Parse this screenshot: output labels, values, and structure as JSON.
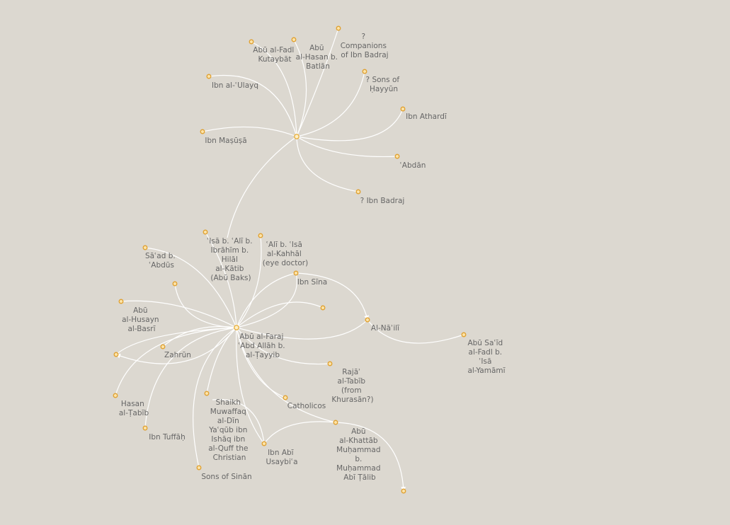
{
  "colors": {
    "background": "#dcd8d0",
    "link": "#ffffff",
    "node_fill": "#fbe3a8",
    "node_stroke": "#e0a030",
    "label": "#666666"
  },
  "nodes": [
    {
      "id": "n_companions",
      "label": [
        "?",
        "Companions",
        "of Ibn Badraj"
      ]
    },
    {
      "id": "n_abualfadl",
      "label": [
        "Abū al-Fadl",
        "Kutaybāt"
      ]
    },
    {
      "id": "n_ibnbatlan",
      "label": [
        "Abū",
        "al-Hasan b.",
        "Batlān"
      ]
    },
    {
      "id": "n_sonshayyun",
      "label": [
        "? Sons of",
        "Ḥayyūn"
      ]
    },
    {
      "id": "n_ulayq",
      "label": [
        "Ibn al-ʿUlayq"
      ]
    },
    {
      "id": "n_athardi",
      "label": [
        "Ibn Athardī"
      ]
    },
    {
      "id": "n_masusa",
      "label": [
        "Ibn Maṣūṣā"
      ]
    },
    {
      "id": "n_abdan",
      "label": [
        "ʿAbdān"
      ]
    },
    {
      "id": "n_ibnbadraj",
      "label": [
        "? Ibn Badraj"
      ]
    },
    {
      "id": "n_isa",
      "label": [
        "ʿIsā b. ʿAlī b.",
        "Ibrāhīm b.",
        "Hilāl",
        "al-Kātib",
        "(Abū Baks)"
      ]
    },
    {
      "id": "n_ali",
      "label": [
        "ʿAlī b. ʿIsā",
        "al-Kahhāl",
        "(eye doctor)"
      ]
    },
    {
      "id": "n_saad",
      "label": [
        "Sāʿad b.",
        "ʿAbdūs"
      ]
    },
    {
      "id": "n_ibnsina",
      "label": [
        "Ibn Sīna"
      ]
    },
    {
      "id": "n_abuhusayn",
      "label": [
        "Abū",
        "al-Husayn",
        "al-Basrī"
      ]
    },
    {
      "id": "n_naili",
      "label": [
        "Al-Nāʾilī"
      ]
    },
    {
      "id": "n_abufaraj",
      "label": [
        "Abū al-Faraj",
        "ʿAbd Allāh b.",
        "al-Ṭayyib"
      ]
    },
    {
      "id": "n_yamami",
      "label": [
        "Abū Saʿīd",
        "al-Fadl b.",
        "ʿIsā",
        "al-Yamāmī"
      ]
    },
    {
      "id": "n_zahrun",
      "label": [
        "Zahrūn"
      ]
    },
    {
      "id": "n_raja",
      "label": [
        "Rajāʾ",
        "al-Tabīb",
        "(from",
        "Khurasān?)"
      ]
    },
    {
      "id": "n_hasan",
      "label": [
        "Hasan",
        "al-Ṭabīb"
      ]
    },
    {
      "id": "n_catholicos",
      "label": [
        "Catholicos"
      ]
    },
    {
      "id": "n_tuffah",
      "label": [
        "Ibn Tuffāḥ"
      ]
    },
    {
      "id": "n_muwaffaq",
      "label": [
        "Shaikh",
        "Muwaffaq",
        "al-Dīn",
        "Yaʿqūb ibn",
        "Ishāq ibn",
        "al-Quff the",
        "Christian"
      ]
    },
    {
      "id": "n_usaybia",
      "label": [
        "Ibn Abī",
        "Usaybiʿa"
      ]
    },
    {
      "id": "n_khattab",
      "label": [
        "Abū",
        "al-Khattāb",
        "Muḥammad",
        "b.",
        "Muḥammad",
        "Abī Ṭālib"
      ]
    },
    {
      "id": "n_sinan",
      "label": [
        "Sons of Sinān"
      ]
    },
    {
      "id": "n_u1"
    },
    {
      "id": "n_u2"
    },
    {
      "id": "n_u3"
    },
    {
      "id": "n_u4"
    },
    {
      "id": "n_hub_top"
    },
    {
      "id": "n_hub_mid"
    }
  ]
}
